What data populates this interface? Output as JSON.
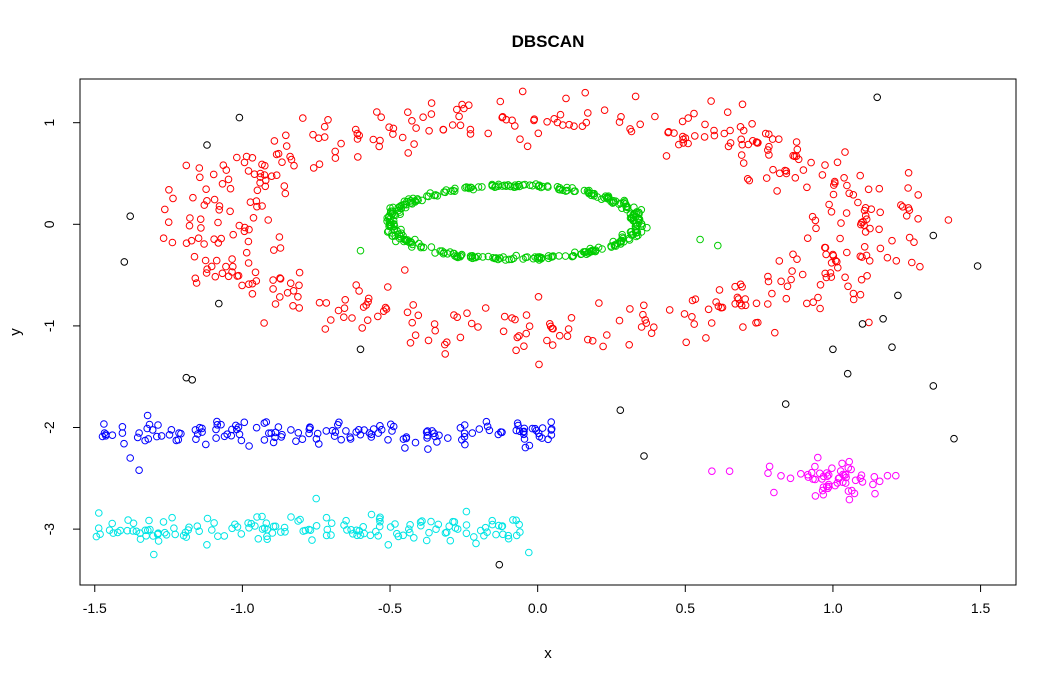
{
  "chart_data": {
    "type": "scatter",
    "title": "DBSCAN",
    "xlabel": "x",
    "ylabel": "y",
    "xlim": [
      -1.55,
      1.62
    ],
    "ylim": [
      -3.55,
      1.43
    ],
    "x_ticks": [
      -1.5,
      -1.0,
      -0.5,
      0.0,
      0.5,
      1.0,
      1.5
    ],
    "x_tick_labels": [
      "-1.5",
      "-1.0",
      "-0.5",
      "0.0",
      "0.5",
      "1.0",
      "1.5"
    ],
    "y_ticks": [
      -3,
      -2,
      -1,
      0,
      1
    ],
    "y_tick_labels": [
      "-3",
      "-2",
      "-1",
      "0",
      "1"
    ],
    "grid": false,
    "marker": "open-circle",
    "clusters": [
      {
        "id": "cluster-1",
        "color": "#ff0000",
        "shape": "ring",
        "cx": 0.0,
        "cy": 0.0,
        "r_x": 1.1,
        "r_y": 1.05,
        "band": 0.18,
        "n": 470,
        "seed": 11
      },
      {
        "id": "cluster-2",
        "color": "#00cc00",
        "shape": "ring",
        "cx": -0.08,
        "cy": 0.02,
        "r_x": 0.42,
        "r_y": 0.36,
        "band": 0.05,
        "n": 330,
        "seed": 23,
        "extra_points": [
          [
            -0.6,
            -0.26
          ],
          [
            0.55,
            -0.15
          ],
          [
            0.61,
            -0.21
          ]
        ]
      },
      {
        "id": "cluster-3",
        "color": "#0000ff",
        "shape": "band",
        "x_range": [
          -1.48,
          0.06
        ],
        "y_center": -2.05,
        "y_spread": 0.1,
        "n": 150,
        "seed": 37,
        "extra_points": [
          [
            -1.38,
            -2.3
          ],
          [
            -1.35,
            -2.42
          ]
        ]
      },
      {
        "id": "cluster-4",
        "color": "#00e5e5",
        "shape": "band",
        "x_range": [
          -1.5,
          -0.03
        ],
        "y_center": -3.0,
        "y_spread": 0.1,
        "n": 150,
        "seed": 51,
        "extra_points": [
          [
            -1.3,
            -3.25
          ],
          [
            -0.03,
            -3.23
          ],
          [
            -0.75,
            -2.7
          ]
        ]
      },
      {
        "id": "cluster-5",
        "color": "#ff00ff",
        "shape": "blob",
        "cx": 1.0,
        "cy": -2.5,
        "sx": 0.08,
        "sy": 0.08,
        "n": 55,
        "seed": 67,
        "extra_points": [
          [
            0.59,
            -2.43
          ],
          [
            0.65,
            -2.43
          ],
          [
            0.78,
            -2.45
          ],
          [
            0.8,
            -2.64
          ]
        ]
      }
    ],
    "noise": {
      "color": "#000000",
      "points": [
        [
          -1.12,
          0.78
        ],
        [
          -1.01,
          1.05
        ],
        [
          -1.38,
          0.08
        ],
        [
          -1.4,
          -0.37
        ],
        [
          -1.08,
          -0.78
        ],
        [
          -0.6,
          -1.23
        ],
        [
          -1.19,
          -1.51
        ],
        [
          -1.17,
          -1.53
        ],
        [
          1.15,
          1.25
        ],
        [
          1.34,
          -0.11
        ],
        [
          1.49,
          -0.41
        ],
        [
          1.22,
          -0.7
        ],
        [
          1.17,
          -0.93
        ],
        [
          1.2,
          -1.21
        ],
        [
          1.1,
          -0.98
        ],
        [
          1.0,
          -1.23
        ],
        [
          1.05,
          -1.47
        ],
        [
          0.84,
          -1.77
        ],
        [
          1.34,
          -1.59
        ],
        [
          1.41,
          -2.11
        ],
        [
          0.28,
          -1.83
        ],
        [
          0.36,
          -2.28
        ],
        [
          -0.13,
          -3.35
        ]
      ]
    }
  }
}
